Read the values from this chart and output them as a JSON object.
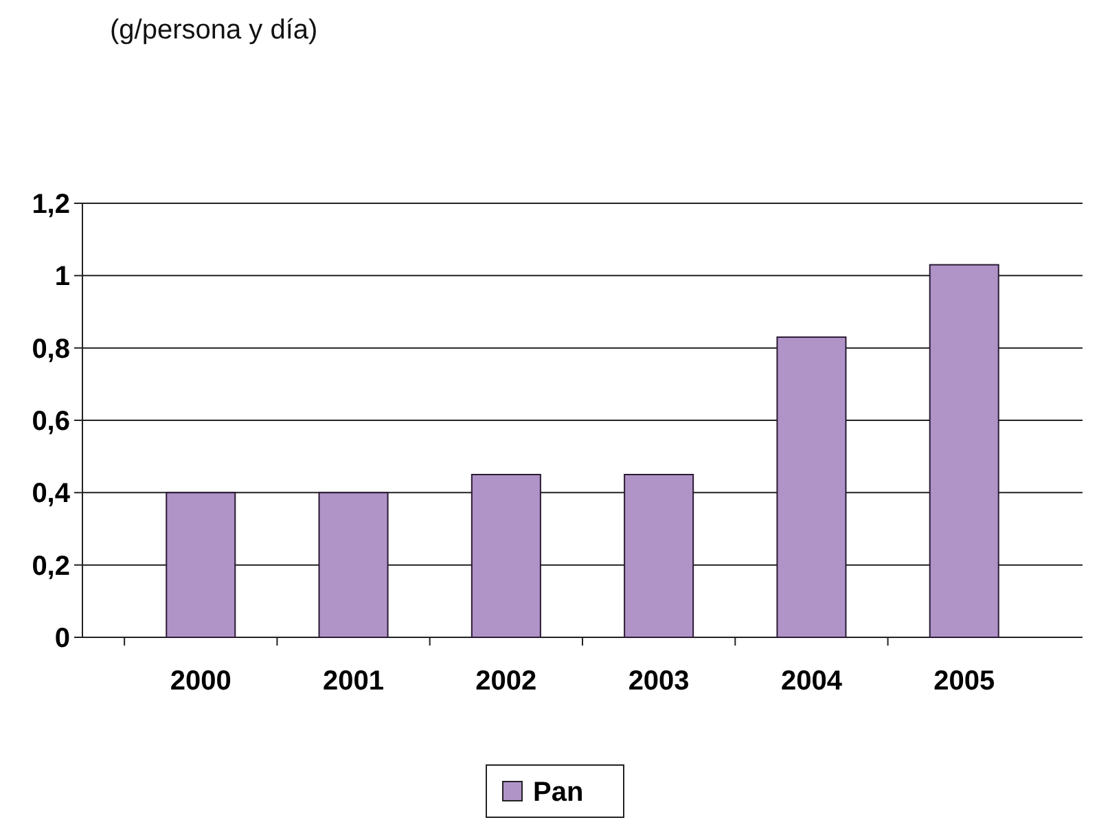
{
  "chart_data": {
    "type": "bar",
    "annotations": [
      "(g/persona y día)"
    ],
    "categories": [
      "2000",
      "2001",
      "2002",
      "2003",
      "2004",
      "2005"
    ],
    "series": [
      {
        "name": "Pan",
        "color": "#b094c8",
        "values": [
          0.4,
          0.4,
          0.45,
          0.45,
          0.83,
          1.03
        ]
      }
    ],
    "ylim": [
      0,
      1.2
    ],
    "yticks": [
      {
        "value": 0,
        "label": "0"
      },
      {
        "value": 0.2,
        "label": "0,2"
      },
      {
        "value": 0.4,
        "label": "0,4"
      },
      {
        "value": 0.6,
        "label": "0,6"
      },
      {
        "value": 0.8,
        "label": "0,8"
      },
      {
        "value": 1,
        "label": "1"
      },
      {
        "value": 1.2,
        "label": "1,2"
      }
    ],
    "grid": "y",
    "legend": "bottom"
  }
}
